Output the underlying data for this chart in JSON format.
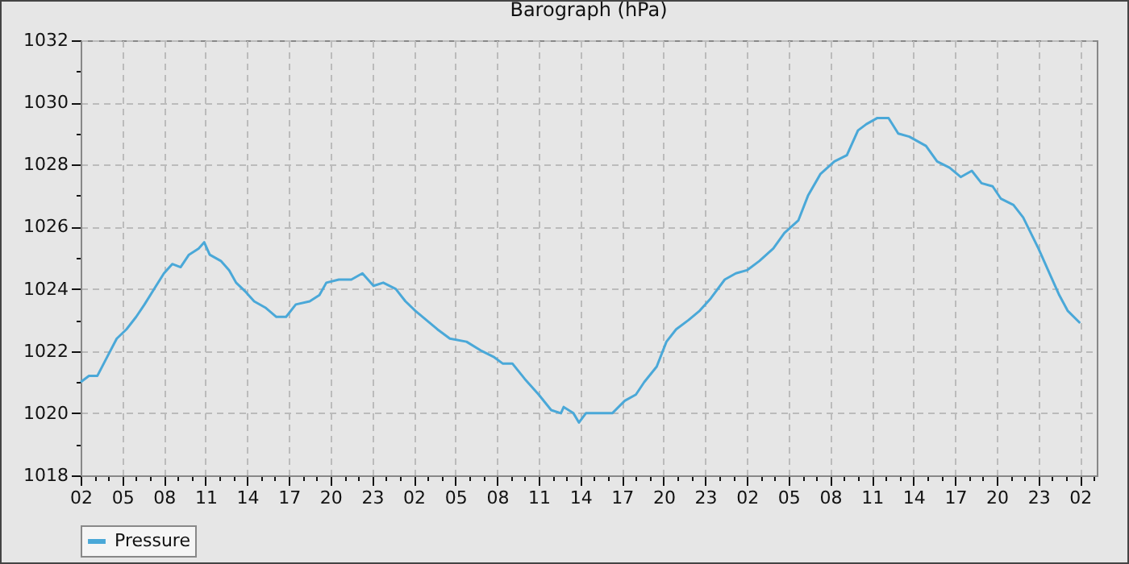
{
  "chart_data": {
    "type": "line",
    "title": "Barograph (hPa)",
    "x": [
      "--01-01T02:00",
      "--01-01T02:36",
      "--01-01T03:12",
      "--01-01T03:54",
      "--01-01T04:36",
      "--01-01T05:18",
      "--01-01T06:00",
      "--01-01T06:36",
      "--01-01T07:18",
      "--01-01T08:00",
      "--01-01T08:36",
      "--01-01T09:12",
      "--01-01T09:48",
      "--01-01T10:30",
      "--01-01T10:54",
      "--01-01T11:18",
      "--01-01T12:06",
      "--01-01T12:42",
      "--01-01T13:12",
      "--01-01T13:54",
      "--01-01T14:30",
      "--01-01T15:18",
      "--01-01T16:06",
      "--01-01T16:48",
      "--01-01T17:30",
      "--01-01T18:30",
      "--01-01T19:12",
      "--01-01T19:42",
      "--01-01T20:36",
      "--01-01T21:30",
      "--01-01T22:18",
      "--01-01T23:06",
      "--01-01T23:48",
      "--01-02T00:42",
      "--01-02T01:24",
      "--01-02T02:06",
      "--01-02T02:54",
      "--01-02T03:42",
      "--01-02T04:36",
      "--01-02T05:48",
      "--01-02T06:54",
      "--01-02T07:48",
      "--01-02T08:24",
      "--01-02T09:06",
      "--01-02T10:00",
      "--01-02T11:00",
      "--01-02T11:54",
      "--01-02T12:36",
      "--01-02T12:48",
      "--01-02T13:30",
      "--01-02T13:54",
      "--01-02T14:24",
      "--01-02T15:18",
      "--01-02T16:18",
      "--01-02T17:12",
      "--01-02T18:00",
      "--01-02T18:36",
      "--01-02T19:30",
      "--01-02T20:12",
      "--01-02T20:54",
      "--01-02T21:48",
      "--01-02T22:36",
      "--01-02T23:24",
      "--01-03T00:24",
      "--01-03T01:12",
      "--01-03T02:00",
      "--01-03T02:54",
      "--01-03T03:54",
      "--01-03T04:42",
      "--01-03T05:42",
      "--01-03T06:24",
      "--01-03T07:18",
      "--01-03T08:18",
      "--01-03T09:12",
      "--01-03T10:00",
      "--01-03T10:36",
      "--01-03T11:24",
      "--01-03T12:12",
      "--01-03T12:54",
      "--01-03T13:42",
      "--01-03T14:54",
      "--01-03T15:42",
      "--01-03T16:36",
      "--01-03T17:24",
      "--01-03T18:12",
      "--01-03T18:54",
      "--01-03T19:42",
      "--01-03T20:18",
      "--01-03T21:12",
      "--01-03T21:54",
      "--01-03T23:00",
      "--01-03T23:48",
      "--01-04T00:30",
      "--01-04T01:06",
      "--01-04T02:00"
    ],
    "series": [
      {
        "name": "Pressure",
        "color": "#4aa8d8",
        "values": [
          1021.0,
          1021.2,
          1021.2,
          1021.8,
          1022.4,
          1022.7,
          1023.1,
          1023.5,
          1024.0,
          1024.5,
          1024.8,
          1024.7,
          1025.1,
          1025.3,
          1025.5,
          1025.1,
          1024.9,
          1024.6,
          1024.2,
          1023.9,
          1023.6,
          1023.4,
          1023.1,
          1023.1,
          1023.5,
          1023.6,
          1023.8,
          1024.2,
          1024.3,
          1024.3,
          1024.5,
          1024.1,
          1024.2,
          1024.0,
          1023.6,
          1023.3,
          1023.0,
          1022.7,
          1022.4,
          1022.3,
          1022.0,
          1021.8,
          1021.6,
          1021.6,
          1021.1,
          1020.6,
          1020.1,
          1020.0,
          1020.2,
          1020.0,
          1019.7,
          1020.0,
          1020.0,
          1020.0,
          1020.4,
          1020.6,
          1021.0,
          1021.5,
          1022.3,
          1022.7,
          1023.0,
          1023.3,
          1023.7,
          1024.3,
          1024.5,
          1024.6,
          1024.9,
          1025.3,
          1025.8,
          1026.2,
          1027.0,
          1027.7,
          1028.1,
          1028.3,
          1029.1,
          1029.3,
          1029.5,
          1029.5,
          1029.0,
          1028.9,
          1028.6,
          1028.1,
          1027.9,
          1027.6,
          1027.8,
          1027.4,
          1027.3,
          1026.9,
          1026.7,
          1026.3,
          1025.3,
          1024.5,
          1023.8,
          1023.3,
          1022.9
        ]
      }
    ],
    "xlim": [
      "--01-01T02:00",
      "--01-04T03:12"
    ],
    "xticks": [
      {
        "value": "--01-01T02:00",
        "label": "02"
      },
      {
        "value": "--01-01T03:00",
        "label": null
      },
      {
        "value": "--01-01T04:00",
        "label": null
      },
      {
        "value": "--01-01T05:00",
        "label": "05"
      },
      {
        "value": "--01-01T06:00",
        "label": null
      },
      {
        "value": "--01-01T07:00",
        "label": null
      },
      {
        "value": "--01-01T08:00",
        "label": "08"
      },
      {
        "value": "--01-01T09:00",
        "label": null
      },
      {
        "value": "--01-01T10:00",
        "label": null
      },
      {
        "value": "--01-01T11:00",
        "label": "11"
      },
      {
        "value": "--01-01T12:00",
        "label": null
      },
      {
        "value": "--01-01T13:00",
        "label": null
      },
      {
        "value": "--01-01T14:00",
        "label": "14"
      },
      {
        "value": "--01-01T15:00",
        "label": null
      },
      {
        "value": "--01-01T16:00",
        "label": null
      },
      {
        "value": "--01-01T17:00",
        "label": "17"
      },
      {
        "value": "--01-01T18:00",
        "label": null
      },
      {
        "value": "--01-01T19:00",
        "label": null
      },
      {
        "value": "--01-01T20:00",
        "label": "20"
      },
      {
        "value": "--01-01T21:00",
        "label": null
      },
      {
        "value": "--01-01T22:00",
        "label": null
      },
      {
        "value": "--01-01T23:00",
        "label": "23"
      },
      {
        "value": "--01-02T00:00",
        "label": null
      },
      {
        "value": "--01-02T01:00",
        "label": null
      },
      {
        "value": "--01-02T02:00",
        "label": "02"
      },
      {
        "value": "--01-02T03:00",
        "label": null
      },
      {
        "value": "--01-02T04:00",
        "label": null
      },
      {
        "value": "--01-02T05:00",
        "label": "05"
      },
      {
        "value": "--01-02T06:00",
        "label": null
      },
      {
        "value": "--01-02T07:00",
        "label": null
      },
      {
        "value": "--01-02T08:00",
        "label": "08"
      },
      {
        "value": "--01-02T09:00",
        "label": null
      },
      {
        "value": "--01-02T10:00",
        "label": null
      },
      {
        "value": "--01-02T11:00",
        "label": "11"
      },
      {
        "value": "--01-02T12:00",
        "label": null
      },
      {
        "value": "--01-02T13:00",
        "label": null
      },
      {
        "value": "--01-02T14:00",
        "label": "14"
      },
      {
        "value": "--01-02T15:00",
        "label": null
      },
      {
        "value": "--01-02T16:00",
        "label": null
      },
      {
        "value": "--01-02T17:00",
        "label": "17"
      },
      {
        "value": "--01-02T18:00",
        "label": null
      },
      {
        "value": "--01-02T19:00",
        "label": null
      },
      {
        "value": "--01-02T20:00",
        "label": "20"
      },
      {
        "value": "--01-02T21:00",
        "label": null
      },
      {
        "value": "--01-02T22:00",
        "label": null
      },
      {
        "value": "--01-02T23:00",
        "label": "23"
      },
      {
        "value": "--01-03T00:00",
        "label": null
      },
      {
        "value": "--01-03T01:00",
        "label": null
      },
      {
        "value": "--01-03T02:00",
        "label": "02"
      },
      {
        "value": "--01-03T03:00",
        "label": null
      },
      {
        "value": "--01-03T04:00",
        "label": null
      },
      {
        "value": "--01-03T05:00",
        "label": "05"
      },
      {
        "value": "--01-03T06:00",
        "label": null
      },
      {
        "value": "--01-03T07:00",
        "label": null
      },
      {
        "value": "--01-03T08:00",
        "label": "08"
      },
      {
        "value": "--01-03T09:00",
        "label": null
      },
      {
        "value": "--01-03T10:00",
        "label": null
      },
      {
        "value": "--01-03T11:00",
        "label": "11"
      },
      {
        "value": "--01-03T12:00",
        "label": null
      },
      {
        "value": "--01-03T13:00",
        "label": null
      },
      {
        "value": "--01-03T14:00",
        "label": "14"
      },
      {
        "value": "--01-03T15:00",
        "label": null
      },
      {
        "value": "--01-03T16:00",
        "label": null
      },
      {
        "value": "--01-03T17:00",
        "label": "17"
      },
      {
        "value": "--01-03T18:00",
        "label": null
      },
      {
        "value": "--01-03T19:00",
        "label": null
      },
      {
        "value": "--01-03T20:00",
        "label": "20"
      },
      {
        "value": "--01-03T21:00",
        "label": null
      },
      {
        "value": "--01-03T22:00",
        "label": null
      },
      {
        "value": "--01-03T23:00",
        "label": "23"
      },
      {
        "value": "--01-04T00:00",
        "label": null
      },
      {
        "value": "--01-04T01:00",
        "label": null
      },
      {
        "value": "--01-04T02:00",
        "label": "02"
      },
      {
        "value": "--01-04T03:00",
        "label": null
      }
    ],
    "ylim": [
      1018,
      1032
    ],
    "yticks": [
      1018,
      {
        "value": 1019,
        "label": null
      },
      1020,
      {
        "value": 1021,
        "label": null
      },
      1022,
      {
        "value": 1023,
        "label": null
      },
      1024,
      {
        "value": 1025,
        "label": null
      },
      1026,
      {
        "value": 1027,
        "label": null
      },
      1028,
      {
        "value": 1029,
        "label": null
      },
      1030,
      {
        "value": 1031,
        "label": null
      },
      1032
    ],
    "grid": true,
    "legend": "bottom",
    "line_style": "solid",
    "marker": "none"
  }
}
